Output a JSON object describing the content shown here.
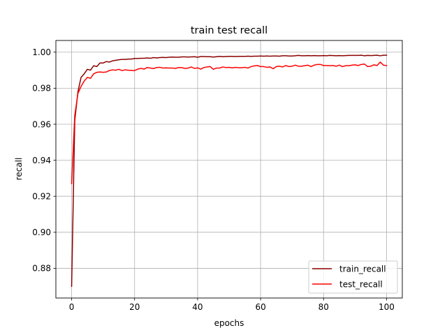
{
  "chart_data": {
    "type": "line",
    "title": "train test recall",
    "xlabel": "epochs",
    "ylabel": "recall",
    "xlim": [
      -5,
      105
    ],
    "ylim": [
      0.8635,
      1.0065
    ],
    "xticks": [
      0,
      20,
      40,
      60,
      80,
      100
    ],
    "xtick_labels": [
      "0",
      "20",
      "40",
      "60",
      "80",
      "100"
    ],
    "yticks": [
      0.88,
      0.9,
      0.92,
      0.94,
      0.96,
      0.98,
      1.0
    ],
    "ytick_labels": [
      "0.88",
      "0.90",
      "0.92",
      "0.94",
      "0.96",
      "0.98",
      "1.00"
    ],
    "grid": true,
    "legend_position": "lower right",
    "series": [
      {
        "name": "train_recall",
        "color": "#8b0000",
        "x": [
          0,
          1,
          2,
          3,
          4,
          5,
          6,
          7,
          8,
          9,
          10,
          11,
          12,
          13,
          14,
          15,
          16,
          17,
          18,
          19,
          20,
          21,
          22,
          23,
          24,
          25,
          26,
          27,
          28,
          29,
          30,
          31,
          32,
          33,
          34,
          35,
          36,
          37,
          38,
          39,
          40,
          41,
          42,
          43,
          44,
          45,
          46,
          47,
          48,
          49,
          50,
          51,
          52,
          53,
          54,
          55,
          56,
          57,
          58,
          59,
          60,
          61,
          62,
          63,
          64,
          65,
          66,
          67,
          68,
          69,
          70,
          71,
          72,
          73,
          74,
          75,
          76,
          77,
          78,
          79,
          80,
          81,
          82,
          83,
          84,
          85,
          86,
          87,
          88,
          89,
          90,
          91,
          92,
          93,
          94,
          95,
          96,
          97,
          98,
          99,
          100
        ],
        "y": [
          0.87,
          0.962,
          0.978,
          0.986,
          0.988,
          0.9905,
          0.99,
          0.9925,
          0.992,
          0.994,
          0.994,
          0.9948,
          0.9945,
          0.9952,
          0.9955,
          0.9958,
          0.996,
          0.996,
          0.9962,
          0.9962,
          0.9965,
          0.9965,
          0.9966,
          0.9966,
          0.9968,
          0.9966,
          0.997,
          0.9968,
          0.997,
          0.9971,
          0.997,
          0.9972,
          0.9973,
          0.9972,
          0.9972,
          0.9974,
          0.9974,
          0.9973,
          0.9974,
          0.9975,
          0.9972,
          0.9976,
          0.9976,
          0.9975,
          0.9975,
          0.9973,
          0.9975,
          0.9977,
          0.9975,
          0.9976,
          0.9977,
          0.9977,
          0.9976,
          0.9977,
          0.9977,
          0.9977,
          0.9978,
          0.9977,
          0.9978,
          0.9978,
          0.9979,
          0.9978,
          0.9979,
          0.9978,
          0.9979,
          0.9979,
          0.9978,
          0.998,
          0.998,
          0.9979,
          0.9979,
          0.998,
          0.9982,
          0.998,
          0.998,
          0.9981,
          0.998,
          0.9981,
          0.998,
          0.998,
          0.9981,
          0.998,
          0.9982,
          0.9981,
          0.998,
          0.9981,
          0.998,
          0.9981,
          0.9982,
          0.9982,
          0.9982,
          0.9982,
          0.9983,
          0.998,
          0.9982,
          0.9981,
          0.9982,
          0.9983,
          0.998,
          0.9983,
          0.9983
        ]
      },
      {
        "name": "test_recall",
        "color": "#ff0000",
        "x": [
          0,
          1,
          2,
          3,
          4,
          5,
          6,
          7,
          8,
          9,
          10,
          11,
          12,
          13,
          14,
          15,
          16,
          17,
          18,
          19,
          20,
          21,
          22,
          23,
          24,
          25,
          26,
          27,
          28,
          29,
          30,
          31,
          32,
          33,
          34,
          35,
          36,
          37,
          38,
          39,
          40,
          41,
          42,
          43,
          44,
          45,
          46,
          47,
          48,
          49,
          50,
          51,
          52,
          53,
          54,
          55,
          56,
          57,
          58,
          59,
          60,
          61,
          62,
          63,
          64,
          65,
          66,
          67,
          68,
          69,
          70,
          71,
          72,
          73,
          74,
          75,
          76,
          77,
          78,
          79,
          80,
          81,
          82,
          83,
          84,
          85,
          86,
          87,
          88,
          89,
          90,
          91,
          92,
          93,
          94,
          95,
          96,
          97,
          98,
          99,
          100
        ],
        "y": [
          0.927,
          0.965,
          0.977,
          0.981,
          0.984,
          0.986,
          0.9855,
          0.988,
          0.9888,
          0.989,
          0.9888,
          0.989,
          0.9898,
          0.9902,
          0.99,
          0.9905,
          0.9898,
          0.9902,
          0.99,
          0.9899,
          0.9898,
          0.9906,
          0.991,
          0.9906,
          0.9915,
          0.9912,
          0.9909,
          0.9915,
          0.9916,
          0.9912,
          0.9913,
          0.9912,
          0.9912,
          0.991,
          0.9915,
          0.9914,
          0.991,
          0.9912,
          0.9918,
          0.991,
          0.9913,
          0.9906,
          0.9915,
          0.9918,
          0.992,
          0.9905,
          0.9912,
          0.9912,
          0.9918,
          0.9915,
          0.9916,
          0.9913,
          0.9916,
          0.9914,
          0.9914,
          0.9916,
          0.9912,
          0.992,
          0.9924,
          0.9926,
          0.992,
          0.992,
          0.9916,
          0.9918,
          0.9908,
          0.992,
          0.9922,
          0.9918,
          0.9926,
          0.992,
          0.9922,
          0.9928,
          0.9922,
          0.9922,
          0.9925,
          0.9928,
          0.992,
          0.9928,
          0.9932,
          0.9932,
          0.9926,
          0.9926,
          0.9925,
          0.9926,
          0.9922,
          0.9928,
          0.992,
          0.9925,
          0.9925,
          0.9928,
          0.993,
          0.9926,
          0.9932,
          0.9934,
          0.992,
          0.9922,
          0.993,
          0.9926,
          0.9945,
          0.9928,
          0.9926
        ]
      }
    ]
  }
}
